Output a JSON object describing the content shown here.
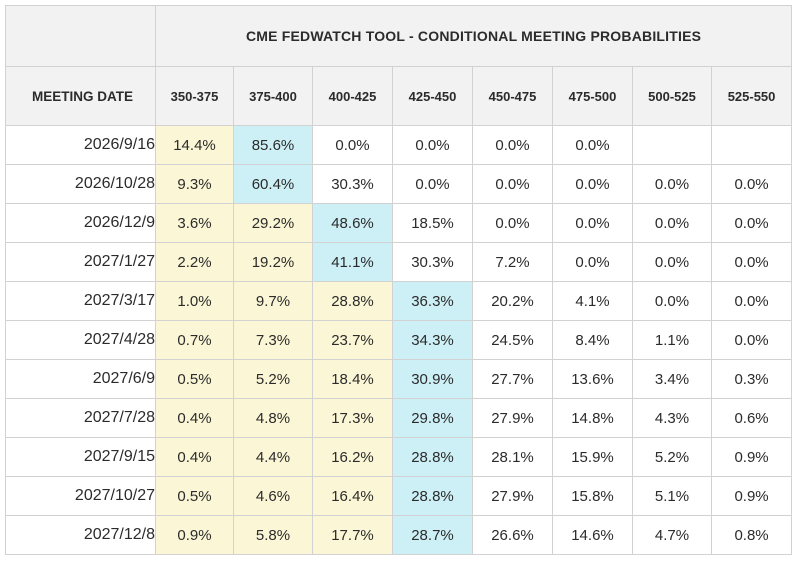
{
  "title": "CME FEDWATCH TOOL - CONDITIONAL MEETING PROBABILITIES",
  "meeting_date_label": "MEETING DATE",
  "ranges": [
    "350-375",
    "375-400",
    "400-425",
    "425-450",
    "450-475",
    "475-500",
    "500-525",
    "525-550"
  ],
  "colors": {
    "header_bg": "#f2f2f2",
    "below_mode_bg": "#fbf7d6",
    "mode_bg": "#cdf0f6",
    "grid": "#d2d2d2",
    "text": "#2b2b2b"
  },
  "rows": [
    {
      "date": "2026/9/16",
      "mode": 1,
      "values": [
        "14.4%",
        "85.6%",
        "0.0%",
        "0.0%",
        "0.0%",
        "0.0%",
        "",
        ""
      ]
    },
    {
      "date": "2026/10/28",
      "mode": 1,
      "values": [
        "9.3%",
        "60.4%",
        "30.3%",
        "0.0%",
        "0.0%",
        "0.0%",
        "0.0%",
        "0.0%"
      ]
    },
    {
      "date": "2026/12/9",
      "mode": 2,
      "values": [
        "3.6%",
        "29.2%",
        "48.6%",
        "18.5%",
        "0.0%",
        "0.0%",
        "0.0%",
        "0.0%"
      ]
    },
    {
      "date": "2027/1/27",
      "mode": 2,
      "values": [
        "2.2%",
        "19.2%",
        "41.1%",
        "30.3%",
        "7.2%",
        "0.0%",
        "0.0%",
        "0.0%"
      ]
    },
    {
      "date": "2027/3/17",
      "mode": 3,
      "values": [
        "1.0%",
        "9.7%",
        "28.8%",
        "36.3%",
        "20.2%",
        "4.1%",
        "0.0%",
        "0.0%"
      ]
    },
    {
      "date": "2027/4/28",
      "mode": 3,
      "values": [
        "0.7%",
        "7.3%",
        "23.7%",
        "34.3%",
        "24.5%",
        "8.4%",
        "1.1%",
        "0.0%"
      ]
    },
    {
      "date": "2027/6/9",
      "mode": 3,
      "values": [
        "0.5%",
        "5.2%",
        "18.4%",
        "30.9%",
        "27.7%",
        "13.6%",
        "3.4%",
        "0.3%"
      ]
    },
    {
      "date": "2027/7/28",
      "mode": 3,
      "values": [
        "0.4%",
        "4.8%",
        "17.3%",
        "29.8%",
        "27.9%",
        "14.8%",
        "4.3%",
        "0.6%"
      ]
    },
    {
      "date": "2027/9/15",
      "mode": 3,
      "values": [
        "0.4%",
        "4.4%",
        "16.2%",
        "28.8%",
        "28.1%",
        "15.9%",
        "5.2%",
        "0.9%"
      ]
    },
    {
      "date": "2027/10/27",
      "mode": 3,
      "values": [
        "0.5%",
        "4.6%",
        "16.4%",
        "28.8%",
        "27.9%",
        "15.8%",
        "5.1%",
        "0.9%"
      ]
    },
    {
      "date": "2027/12/8",
      "mode": 3,
      "values": [
        "0.9%",
        "5.8%",
        "17.7%",
        "28.7%",
        "26.6%",
        "14.6%",
        "4.7%",
        "0.8%"
      ]
    }
  ]
}
